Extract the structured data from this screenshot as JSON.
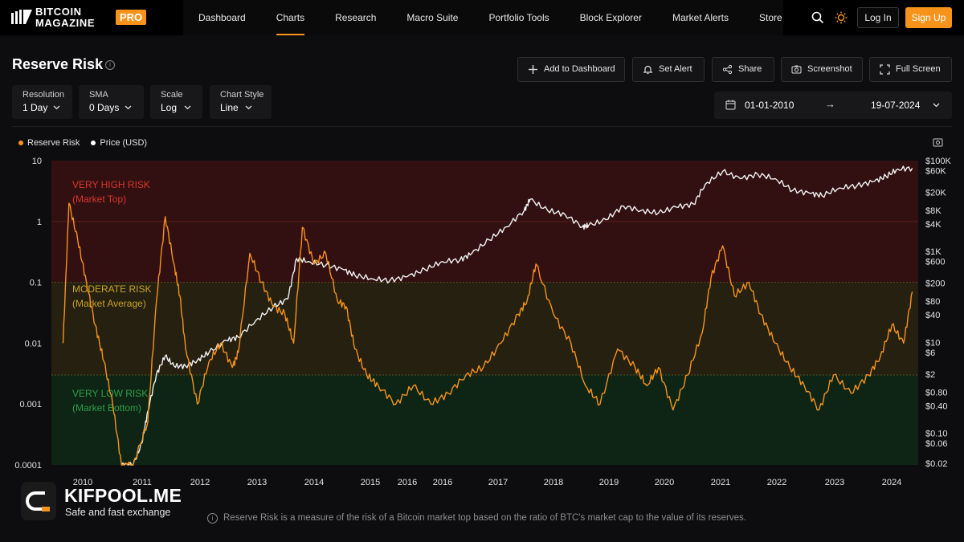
{
  "brand": {
    "line1": "BITCOIN",
    "line2": "MAGAZINE",
    "badge": "PRO",
    "accent": "#f7931a"
  },
  "nav": {
    "links": [
      "Dashboard",
      "Charts",
      "Research",
      "Macro Suite",
      "Portfolio Tools",
      "Block Explorer",
      "Market Alerts",
      "Store"
    ],
    "active": "Charts",
    "login": "Log In",
    "signup": "Sign Up"
  },
  "page": {
    "title": "Reserve Risk"
  },
  "actions": [
    "Add to Dashboard",
    "Set Alert",
    "Share",
    "Screenshot",
    "Full Screen"
  ],
  "controls": [
    {
      "label": "Resolution",
      "value": "1 Day"
    },
    {
      "label": "SMA",
      "value": "0 Days"
    },
    {
      "label": "Scale",
      "value": "Log"
    },
    {
      "label": "Chart Style",
      "value": "Line"
    }
  ],
  "date_range": {
    "start": "01-01-2010",
    "arrow": "→",
    "end": "19-07-2024"
  },
  "chart_data": {
    "type": "line",
    "legend": [
      {
        "name": "Reserve Risk",
        "color": "#f7931a"
      },
      {
        "name": "Price (USD)",
        "color": "#ffffff"
      }
    ],
    "x_ticks": [
      "2010",
      "2011",
      "2012",
      "2013",
      "2014",
      "2015",
      "2016",
      "2016",
      "2017",
      "2018",
      "2019",
      "2020",
      "2021",
      "2022",
      "2023",
      "2024"
    ],
    "y_left_ticks": [
      "10",
      "1",
      "0.1",
      "0.01",
      "0.001",
      "0.0001"
    ],
    "y_right_ticks": [
      "$100K",
      "$60K",
      "$20K",
      "$8K",
      "$4K",
      "$1K",
      "$600",
      "$200",
      "$80",
      "$40",
      "$10",
      "$6",
      "$2",
      "$0.80",
      "$0.40",
      "$0.10",
      "$0.06",
      "$0.02"
    ],
    "y_scale": "log",
    "zones": [
      {
        "title": "VERY HIGH RISK",
        "subtitle": "(Market Top)",
        "color": "#d9362b"
      },
      {
        "title": "MODERATE RISK",
        "subtitle": "(Market Average)",
        "color": "#c9a227"
      },
      {
        "title": "VERY LOW RISK",
        "subtitle": "(Market Bottom)",
        "color": "#2e9e4a"
      }
    ],
    "series": [
      {
        "name": "Reserve Risk",
        "x": [
          2010.0,
          2010.1,
          2010.25,
          2010.4,
          2010.55,
          2010.7,
          2010.85,
          2011.0,
          2011.2,
          2011.45,
          2011.6,
          2011.75,
          2011.9,
          2012.0,
          2012.1,
          2012.3,
          2012.5,
          2012.7,
          2012.9,
          2013.0,
          2013.2,
          2013.4,
          2013.6,
          2013.8,
          2013.95,
          2014.1,
          2014.3,
          2014.5,
          2014.7,
          2014.85,
          2015.0,
          2015.2,
          2015.4,
          2015.7,
          2016.0,
          2016.3,
          2016.6,
          2016.9,
          2017.2,
          2017.5,
          2017.8,
          2017.95,
          2018.1,
          2018.4,
          2018.7,
          2018.95,
          2019.2,
          2019.5,
          2019.8,
          2020.0,
          2020.2,
          2020.45,
          2020.7,
          2020.95,
          2021.1,
          2021.3,
          2021.5,
          2021.75,
          2021.95,
          2022.2,
          2022.45,
          2022.7,
          2022.95,
          2023.2,
          2023.5,
          2023.8,
          2024.0,
          2024.2,
          2024.4,
          2024.55
        ],
        "y": [
          0.01,
          2.0,
          0.5,
          0.1,
          0.02,
          0.005,
          0.001,
          0.0001,
          0.0001,
          0.0005,
          0.05,
          1.2,
          0.2,
          0.06,
          0.008,
          0.001,
          0.005,
          0.01,
          0.004,
          0.007,
          0.3,
          0.1,
          0.04,
          0.03,
          0.01,
          0.8,
          0.2,
          0.3,
          0.05,
          0.04,
          0.008,
          0.003,
          0.002,
          0.001,
          0.002,
          0.001,
          0.0015,
          0.003,
          0.004,
          0.01,
          0.03,
          0.05,
          0.2,
          0.03,
          0.01,
          0.002,
          0.001,
          0.008,
          0.004,
          0.002,
          0.004,
          0.0008,
          0.003,
          0.015,
          0.12,
          0.4,
          0.06,
          0.1,
          0.03,
          0.01,
          0.004,
          0.002,
          0.0008,
          0.003,
          0.0015,
          0.003,
          0.006,
          0.02,
          0.01,
          0.07
        ]
      },
      {
        "name": "Price (USD)",
        "x": [
          2011.0,
          2011.2,
          2011.35,
          2011.45,
          2011.6,
          2011.75,
          2011.9,
          2012.1,
          2012.3,
          2012.5,
          2012.8,
          2013.0,
          2013.3,
          2013.6,
          2013.85,
          2014.0,
          2014.2,
          2014.5,
          2014.8,
          2015.0,
          2015.3,
          2015.6,
          2015.9,
          2016.2,
          2016.5,
          2016.8,
          2017.0,
          2017.3,
          2017.6,
          2017.9,
          2018.0,
          2018.3,
          2018.6,
          2018.9,
          2019.0,
          2019.3,
          2019.6,
          2019.9,
          2020.2,
          2020.5,
          2020.8,
          2021.0,
          2021.3,
          2021.6,
          2021.9,
          2022.2,
          2022.5,
          2022.8,
          2023.0,
          2023.3,
          2023.6,
          2023.9,
          2024.1,
          2024.3,
          2024.55
        ],
        "y": [
          0.02,
          0.02,
          0.06,
          0.3,
          2,
          5,
          3,
          3,
          4,
          6,
          11,
          13,
          30,
          60,
          90,
          700,
          600,
          500,
          400,
          300,
          250,
          230,
          280,
          400,
          600,
          650,
          900,
          1800,
          3500,
          8000,
          14000,
          8000,
          6500,
          3500,
          3700,
          5000,
          10000,
          8000,
          7000,
          9500,
          11000,
          30000,
          58000,
          40000,
          50000,
          40000,
          22000,
          19000,
          17000,
          25000,
          28000,
          35000,
          45000,
          65000,
          68000
        ]
      }
    ]
  },
  "footer": {
    "watermark_title": "KIFPOOL.ME",
    "watermark_sub": "Safe and fast exchange",
    "description": "Reserve Risk is a measure of the risk of a Bitcoin market top based on the ratio of BTC's market cap to the value of its reserves."
  }
}
